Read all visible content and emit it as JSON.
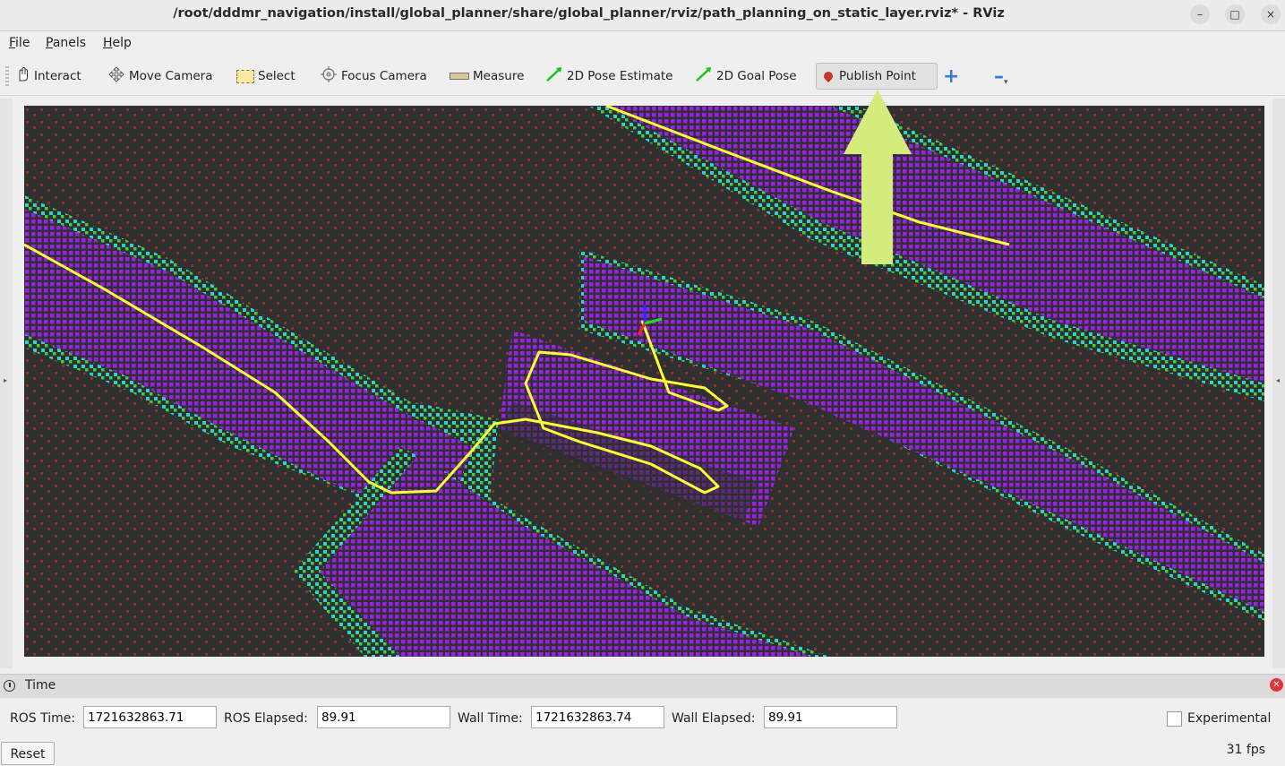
{
  "window": {
    "title": "/root/dddmr_navigation/install/global_planner/share/global_planner/rviz/path_planning_on_static_layer.rviz* - RViz",
    "controls": {
      "minimize": "–",
      "maximize": "□",
      "close": "×"
    }
  },
  "menu": {
    "file": {
      "accel": "F",
      "rest": "ile"
    },
    "panels": {
      "accel": "P",
      "rest": "anels"
    },
    "help": {
      "accel": "H",
      "rest": "elp"
    }
  },
  "toolbar": {
    "interact": "Interact",
    "move_camera": "Move Camera",
    "select": "Select",
    "focus_camera": "Focus Camera",
    "measure": "Measure",
    "pose_estimate": "2D Pose Estimate",
    "goal_pose": "2D Goal Pose",
    "publish_point": "Publish Point",
    "active_tool": "Publish Point",
    "icons": [
      "hand-icon",
      "move-camera-icon",
      "select-box-icon",
      "crosshair-icon",
      "ruler-icon",
      "green-arrow-icon",
      "green-arrow-icon",
      "map-pin-icon",
      "plus-icon",
      "minus-icon"
    ]
  },
  "viewport": {
    "background": "#303030",
    "path_color": "#ffff33",
    "annotation_arrow_color": "#d4ec7c",
    "point_colors": [
      "#9b1fe8",
      "#2bd4c9",
      "#3dd13d",
      "#e6e620",
      "#e03020"
    ]
  },
  "time_panel": {
    "title": "Time",
    "ros_time_label": "ROS Time:",
    "ros_time": "1721632863.71",
    "ros_elapsed_label": "ROS Elapsed:",
    "ros_elapsed": "89.91",
    "wall_time_label": "Wall Time:",
    "wall_time": "1721632863.74",
    "wall_elapsed_label": "Wall Elapsed:",
    "wall_elapsed": "89.91",
    "experimental_label": "Experimental",
    "experimental_checked": false
  },
  "status": {
    "reset_label": "Reset",
    "fps": "31 fps"
  }
}
